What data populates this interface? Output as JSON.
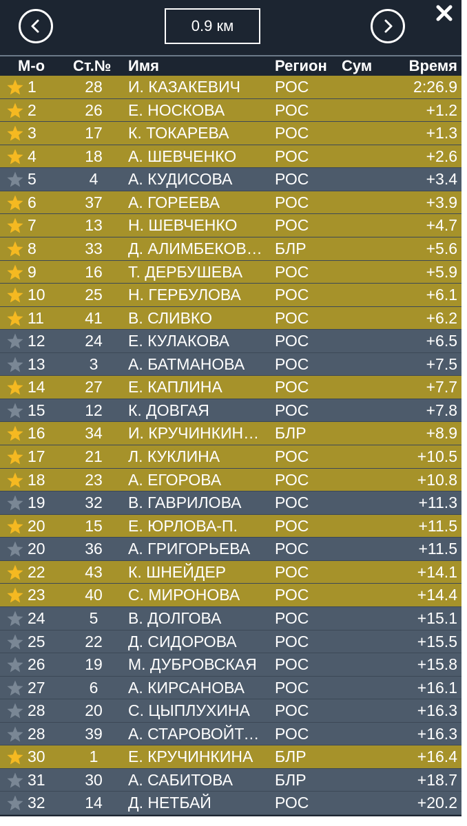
{
  "topbar": {
    "distance_label": "0.9 км",
    "prev_icon": "chevron-left-icon",
    "next_icon": "chevron-right-icon",
    "close_icon": "close-icon"
  },
  "header": {
    "place": "М-о",
    "bib": "Ст.№",
    "name": "Имя",
    "region": "Регион",
    "sum": "Сум",
    "time": "Время"
  },
  "colors": {
    "highlight_row": "#a6922a",
    "normal_row": "#4d5b6b",
    "star_gold": "#f5b921",
    "star_gray": "#7a8795",
    "background": "#1c2531"
  },
  "rows": [
    {
      "place": "1",
      "bib": "28",
      "name": "И. КАЗАКЕВИЧ",
      "region": "РОС",
      "time": "2:26.9",
      "starred": true
    },
    {
      "place": "2",
      "bib": "26",
      "name": "Е. НОСКОВА",
      "region": "РОС",
      "time": "+1.2",
      "starred": true
    },
    {
      "place": "3",
      "bib": "17",
      "name": "К. ТОКАРЕВА",
      "region": "РОС",
      "time": "+1.3",
      "starred": true
    },
    {
      "place": "4",
      "bib": "18",
      "name": "А. ШЕВЧЕНКО",
      "region": "РОС",
      "time": "+2.6",
      "starred": true
    },
    {
      "place": "5",
      "bib": "4",
      "name": "А. КУДИСОВА",
      "region": "РОС",
      "time": "+3.4",
      "starred": false
    },
    {
      "place": "6",
      "bib": "37",
      "name": "А. ГОРЕЕВА",
      "region": "РОС",
      "time": "+3.9",
      "starred": true
    },
    {
      "place": "7",
      "bib": "13",
      "name": "Н. ШЕВЧЕНКО",
      "region": "РОС",
      "time": "+4.7",
      "starred": true
    },
    {
      "place": "8",
      "bib": "33",
      "name": "Д. АЛИМБЕКОВ…",
      "region": "БЛР",
      "time": "+5.6",
      "starred": true
    },
    {
      "place": "9",
      "bib": "16",
      "name": "Т. ДЕРБУШЕВА",
      "region": "РОС",
      "time": "+5.9",
      "starred": true
    },
    {
      "place": "10",
      "bib": "25",
      "name": "Н. ГЕРБУЛОВА",
      "region": "РОС",
      "time": "+6.1",
      "starred": true
    },
    {
      "place": "11",
      "bib": "41",
      "name": "В. СЛИВКО",
      "region": "РОС",
      "time": "+6.2",
      "starred": true
    },
    {
      "place": "12",
      "bib": "24",
      "name": "Е. КУЛАКОВА",
      "region": "РОС",
      "time": "+6.5",
      "starred": false
    },
    {
      "place": "13",
      "bib": "3",
      "name": "А. БАТМАНОВА",
      "region": "РОС",
      "time": "+7.5",
      "starred": false
    },
    {
      "place": "14",
      "bib": "27",
      "name": "Е. КАПЛИНА",
      "region": "РОС",
      "time": "+7.7",
      "starred": true
    },
    {
      "place": "15",
      "bib": "12",
      "name": "К. ДОВГАЯ",
      "region": "РОС",
      "time": "+7.8",
      "starred": false
    },
    {
      "place": "16",
      "bib": "34",
      "name": "И. КРУЧИНКИН…",
      "region": "БЛР",
      "time": "+8.9",
      "starred": true
    },
    {
      "place": "17",
      "bib": "21",
      "name": "Л. КУКЛИНА",
      "region": "РОС",
      "time": "+10.5",
      "starred": true
    },
    {
      "place": "18",
      "bib": "23",
      "name": "А. ЕГОРОВА",
      "region": "РОС",
      "time": "+10.8",
      "starred": true
    },
    {
      "place": "19",
      "bib": "32",
      "name": "В. ГАВРИЛОВА",
      "region": "РОС",
      "time": "+11.3",
      "starred": false
    },
    {
      "place": "20",
      "bib": "15",
      "name": "Е. ЮРЛОВА-П.",
      "region": "РОС",
      "time": "+11.5",
      "starred": true
    },
    {
      "place": "20",
      "bib": "36",
      "name": "А. ГРИГОРЬЕВА",
      "region": "РОС",
      "time": "+11.5",
      "starred": false
    },
    {
      "place": "22",
      "bib": "43",
      "name": "К. ШНЕЙДЕР",
      "region": "РОС",
      "time": "+14.1",
      "starred": true
    },
    {
      "place": "23",
      "bib": "40",
      "name": "С. МИРОНОВА",
      "region": "РОС",
      "time": "+14.4",
      "starred": true
    },
    {
      "place": "24",
      "bib": "5",
      "name": "В. ДОЛГОВА",
      "region": "РОС",
      "time": "+15.1",
      "starred": false
    },
    {
      "place": "25",
      "bib": "22",
      "name": "Д. СИДОРОВА",
      "region": "РОС",
      "time": "+15.5",
      "starred": false
    },
    {
      "place": "26",
      "bib": "19",
      "name": "М. ДУБРОВСКАЯ",
      "region": "РОС",
      "time": "+15.8",
      "starred": false
    },
    {
      "place": "27",
      "bib": "6",
      "name": "А. КИРСАНОВА",
      "region": "РОС",
      "time": "+16.1",
      "starred": false
    },
    {
      "place": "28",
      "bib": "20",
      "name": "С. ЦЫПЛУХИНА",
      "region": "РОС",
      "time": "+16.3",
      "starred": false
    },
    {
      "place": "28",
      "bib": "39",
      "name": "А. СТАРОВОЙТО…",
      "region": "РОС",
      "time": "+16.3",
      "starred": false
    },
    {
      "place": "30",
      "bib": "1",
      "name": "Е. КРУЧИНКИНА",
      "region": "БЛР",
      "time": "+16.4",
      "starred": true
    },
    {
      "place": "31",
      "bib": "30",
      "name": "А. САБИТОВА",
      "region": "БЛР",
      "time": "+18.7",
      "starred": false
    },
    {
      "place": "32",
      "bib": "14",
      "name": "Д. НЕТБАЙ",
      "region": "РОС",
      "time": "+20.2",
      "starred": false
    }
  ]
}
